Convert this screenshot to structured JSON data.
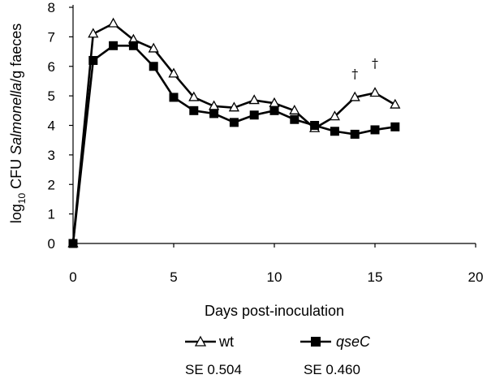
{
  "chart_data": {
    "type": "line",
    "title": "",
    "xlabel": "Days post-inoculation",
    "ylabel_parts": {
      "prefix": "log",
      "subscript": "10",
      "middle": " CFU ",
      "italic": "Salmonella",
      "suffix": "/g faeces"
    },
    "xlim": [
      0,
      20
    ],
    "ylim": [
      0,
      8
    ],
    "xticks": [
      "0",
      "5",
      "10",
      "15",
      "20"
    ],
    "yticks": [
      "0",
      "1",
      "2",
      "3",
      "4",
      "5",
      "6",
      "7",
      "8"
    ],
    "grid": false,
    "series": [
      {
        "name": "wt",
        "italic": false,
        "marker": "open-triangle",
        "x": [
          0,
          1,
          2,
          3,
          4,
          5,
          6,
          7,
          8,
          9,
          10,
          11,
          12,
          13,
          14,
          15,
          16
        ],
        "values": [
          0,
          7.1,
          7.45,
          6.9,
          6.6,
          5.75,
          4.95,
          4.65,
          4.6,
          4.85,
          4.75,
          4.5,
          3.9,
          4.3,
          4.95,
          5.1,
          4.7
        ],
        "se_label": "SE 0.504"
      },
      {
        "name": "qseC",
        "italic": true,
        "marker": "filled-square",
        "x": [
          0,
          1,
          2,
          3,
          4,
          5,
          6,
          7,
          8,
          9,
          10,
          11,
          12,
          13,
          14,
          15,
          16
        ],
        "values": [
          0,
          6.2,
          6.7,
          6.7,
          6.0,
          4.95,
          4.5,
          4.4,
          4.1,
          4.35,
          4.5,
          4.2,
          4.0,
          3.8,
          3.7,
          3.85,
          3.95
        ],
        "se_label": "SE 0.460"
      }
    ],
    "annotations": [
      {
        "text": "†",
        "x": 14,
        "y": 5.6
      },
      {
        "text": "†",
        "x": 15,
        "y": 5.95
      }
    ],
    "legend_position": "bottom"
  },
  "colors": {
    "line": "#000000",
    "marker_fill_open": "#ffffff"
  }
}
